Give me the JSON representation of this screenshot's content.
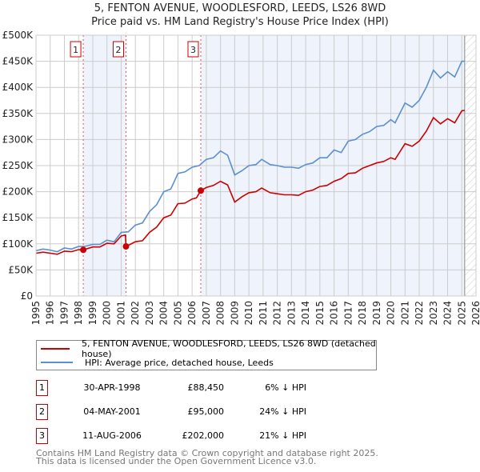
{
  "chart_data": {
    "type": "line",
    "title": "5, FENTON AVENUE, WOODLESFORD, LEEDS, LS26 8WD",
    "subtitle": "Price paid vs. HM Land Registry's House Price Index (HPI)",
    "xlim": [
      1995,
      2026
    ],
    "ylim": [
      0,
      500000
    ],
    "grid": true,
    "x_ticks": [
      "1995",
      "1996",
      "1997",
      "1998",
      "1999",
      "2000",
      "2001",
      "2002",
      "2003",
      "2004",
      "2005",
      "2006",
      "2007",
      "2008",
      "2009",
      "2010",
      "2011",
      "2012",
      "2013",
      "2014",
      "2015",
      "2016",
      "2017",
      "2018",
      "2019",
      "2020",
      "2021",
      "2022",
      "2023",
      "2024",
      "2025",
      "2026"
    ],
    "y_ticks": [
      {
        "value": 0,
        "label": "£0"
      },
      {
        "value": 50000,
        "label": "£50K"
      },
      {
        "value": 100000,
        "label": "£100K"
      },
      {
        "value": 150000,
        "label": "£150K"
      },
      {
        "value": 200000,
        "label": "£200K"
      },
      {
        "value": 250000,
        "label": "£250K"
      },
      {
        "value": 300000,
        "label": "£300K"
      },
      {
        "value": 350000,
        "label": "£350K"
      },
      {
        "value": 400000,
        "label": "£400K"
      },
      {
        "value": 450000,
        "label": "£450K"
      },
      {
        "value": 500000,
        "label": "£500K"
      }
    ],
    "data_end": 2025.2,
    "series": [
      {
        "name": "5, FENTON AVENUE, WOODLESFORD, LEEDS, LS26 8WD (detached house)",
        "color": "#cc0000",
        "x": [
          1995,
          1995.5,
          1996,
          1996.5,
          1997,
          1997.5,
          1998,
          1998.33,
          1999,
          1999.5,
          2000,
          2000.5,
          2001,
          2001.3,
          2001.34,
          2002,
          2002.5,
          2003,
          2003.5,
          2004,
          2004.5,
          2005,
          2005.5,
          2006,
          2006.3,
          2006.61,
          2007,
          2007.5,
          2008,
          2008.5,
          2009,
          2009.5,
          2010,
          2010.5,
          2010.9,
          2011.5,
          2012,
          2012.5,
          2013,
          2013.5,
          2014,
          2014.5,
          2015,
          2015.5,
          2016,
          2016.5,
          2017,
          2017.5,
          2018,
          2018.5,
          2019,
          2019.5,
          2020,
          2020.3,
          2021,
          2021.5,
          2022,
          2022.5,
          2023,
          2023.5,
          2024,
          2024.5,
          2025,
          2025.2
        ],
        "y": [
          82000,
          84000,
          82000,
          80000,
          86000,
          85000,
          89000,
          88450,
          94000,
          94000,
          101000,
          100000,
          115000,
          117000,
          95000,
          104000,
          106000,
          122000,
          132000,
          150000,
          155000,
          177000,
          178000,
          186000,
          188000,
          202000,
          208000,
          212000,
          220000,
          213000,
          180000,
          190000,
          198000,
          200000,
          207000,
          198000,
          196000,
          194000,
          194000,
          193000,
          200000,
          203000,
          210000,
          212000,
          220000,
          225000,
          235000,
          236000,
          245000,
          250000,
          255000,
          258000,
          265000,
          262000,
          292000,
          287000,
          297000,
          316000,
          342000,
          330000,
          340000,
          332000,
          355000,
          356000
        ]
      },
      {
        "name": "HPI: Average price, detached house, Leeds",
        "color": "#5b8fd0",
        "x": [
          1995,
          1995.5,
          1996,
          1996.5,
          1997,
          1997.5,
          1998,
          1998.4,
          1999,
          1999.5,
          2000,
          2000.5,
          2001,
          2001.5,
          2002,
          2002.5,
          2003,
          2003.5,
          2004,
          2004.5,
          2005,
          2005.5,
          2006,
          2006.5,
          2007,
          2007.5,
          2008,
          2008.5,
          2009,
          2009.5,
          2010,
          2010.5,
          2010.9,
          2011.5,
          2012,
          2012.5,
          2013,
          2013.5,
          2014,
          2014.5,
          2015,
          2015.5,
          2016,
          2016.5,
          2017,
          2017.5,
          2018,
          2018.5,
          2019,
          2019.5,
          2020,
          2020.3,
          2021,
          2021.5,
          2022,
          2022.5,
          2023,
          2023.5,
          2024,
          2024.5,
          2025,
          2025.2
        ],
        "y": [
          87000,
          90000,
          88000,
          85000,
          92000,
          90000,
          95000,
          95000,
          99000,
          99000,
          107000,
          104000,
          122000,
          123000,
          136000,
          140000,
          162000,
          175000,
          200000,
          205000,
          235000,
          238000,
          247000,
          250000,
          262000,
          265000,
          278000,
          270000,
          232000,
          240000,
          250000,
          252000,
          262000,
          252000,
          250000,
          247000,
          247000,
          245000,
          252000,
          255000,
          265000,
          265000,
          280000,
          275000,
          297000,
          300000,
          310000,
          315000,
          325000,
          327000,
          338000,
          332000,
          370000,
          362000,
          375000,
          400000,
          433000,
          418000,
          430000,
          420000,
          450000,
          450000
        ]
      }
    ],
    "sales": [
      {
        "n": "1",
        "x": 1998.33,
        "date": "30-APR-1998",
        "price": 88450,
        "price_label": "£88,450",
        "pct": "6% ↓ HPI"
      },
      {
        "n": "2",
        "x": 2001.34,
        "date": "04-MAY-2001",
        "price": 95000,
        "price_label": "£95,000",
        "pct": "24% ↓ HPI"
      },
      {
        "n": "3",
        "x": 2006.61,
        "date": "11-AUG-2006",
        "price": 202000,
        "price_label": "£202,000",
        "pct": "21% ↓ HPI"
      }
    ]
  },
  "footer": {
    "line1": "Contains HM Land Registry data © Crown copyright and database right 2025.",
    "line2": "This data is licensed under the Open Government Licence v3.0."
  }
}
